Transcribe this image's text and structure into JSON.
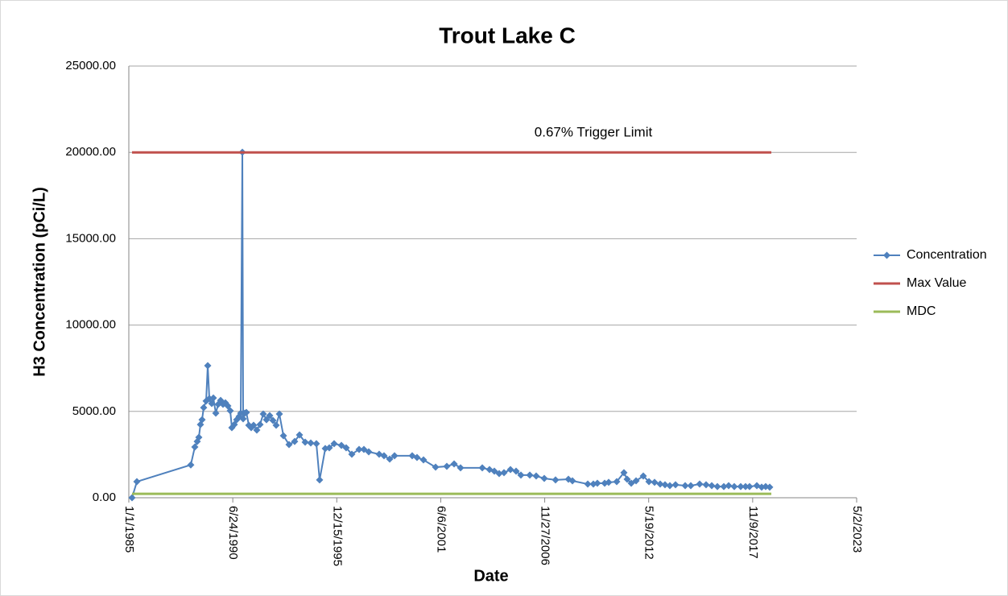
{
  "chart_data": {
    "type": "line",
    "title": "Trout Lake C",
    "x_label": "Date",
    "y_label": "H3 Concentration (pCi/L)",
    "annotation": "0.67% Trigger Limit",
    "xlim": [
      31048,
      45048
    ],
    "xticks": [
      {
        "value": 31048,
        "label": "1/1/1985"
      },
      {
        "value": 33048,
        "label": "6/24/1990"
      },
      {
        "value": 35048,
        "label": "12/15/1995"
      },
      {
        "value": 37048,
        "label": "6/6/2001"
      },
      {
        "value": 39048,
        "label": "11/27/2006"
      },
      {
        "value": 41048,
        "label": "5/19/2012"
      },
      {
        "value": 43048,
        "label": "11/9/2017"
      },
      {
        "value": 45048,
        "label": "5/2/2023"
      }
    ],
    "ylim": [
      0,
      25000
    ],
    "yticks": [
      {
        "value": 0,
        "label": "0.00"
      },
      {
        "value": 5000,
        "label": "5000.00"
      },
      {
        "value": 10000,
        "label": "10000.00"
      },
      {
        "value": 15000,
        "label": "15000.00"
      },
      {
        "value": 20000,
        "label": "20000.00"
      },
      {
        "value": 25000,
        "label": "25000.00"
      }
    ],
    "grid": true,
    "legend": "right",
    "series": [
      {
        "name": "Concentration",
        "color": "#4f81bd",
        "markers": true,
        "x": [
          31110,
          31203,
          32240,
          32318,
          32364,
          32395,
          32426,
          32457,
          32488,
          32535,
          32566,
          32597,
          32643,
          32674,
          32721,
          32767,
          32814,
          32860,
          32906,
          32953,
          32999,
          33030,
          33077,
          33123,
          33170,
          33201,
          33232,
          33247,
          33278,
          33309,
          33356,
          33402,
          33448,
          33510,
          33572,
          33634,
          33696,
          33758,
          33820,
          33882,
          33944,
          34022,
          34130,
          34238,
          34331,
          34440,
          34548,
          34656,
          34718,
          34827,
          34904,
          34997,
          35137,
          35229,
          35338,
          35477,
          35570,
          35663,
          35864,
          35957,
          36066,
          36159,
          36499,
          36592,
          36716,
          36949,
          37165,
          37305,
          37429,
          37847,
          37986,
          38079,
          38172,
          38265,
          38389,
          38497,
          38590,
          38761,
          38884,
          39039,
          39256,
          39504,
          39581,
          39876,
          39984,
          40061,
          40201,
          40278,
          40433,
          40572,
          40634,
          40712,
          40805,
          40944,
          41053,
          41161,
          41269,
          41362,
          41455,
          41564,
          41750,
          41858,
          42028,
          42152,
          42261,
          42369,
          42493,
          42586,
          42694,
          42818,
          42911,
          42988,
          43128,
          43221,
          43298,
          43376
        ],
        "values": [
          0,
          930,
          1900,
          2940,
          3260,
          3500,
          4240,
          4520,
          5220,
          5600,
          7650,
          5740,
          5460,
          5780,
          4900,
          5410,
          5640,
          5410,
          5500,
          5320,
          5040,
          4060,
          4240,
          4520,
          4710,
          4900,
          20010,
          4570,
          4900,
          4940,
          4200,
          4060,
          4200,
          3920,
          4240,
          4850,
          4520,
          4760,
          4480,
          4200,
          4850,
          3590,
          3080,
          3260,
          3640,
          3220,
          3170,
          3130,
          1030,
          2850,
          2890,
          3130,
          3030,
          2890,
          2520,
          2800,
          2800,
          2660,
          2520,
          2430,
          2240,
          2430,
          2430,
          2330,
          2190,
          1770,
          1820,
          1960,
          1730,
          1730,
          1630,
          1540,
          1400,
          1450,
          1630,
          1540,
          1310,
          1310,
          1260,
          1120,
          1030,
          1070,
          980,
          790,
          790,
          840,
          840,
          890,
          930,
          1450,
          1070,
          840,
          980,
          1260,
          930,
          890,
          790,
          750,
          700,
          750,
          700,
          700,
          790,
          750,
          700,
          650,
          650,
          700,
          650,
          650,
          650,
          650,
          700,
          610,
          650,
          610
        ]
      },
      {
        "name": "Max Value",
        "color": "#c0504d",
        "markers": false,
        "x": [
          31110,
          43407
        ],
        "values": [
          20000,
          20000
        ]
      },
      {
        "name": "MDC",
        "color": "#9bbb59",
        "markers": false,
        "x": [
          31110,
          43407
        ],
        "values": [
          230,
          230
        ]
      }
    ]
  }
}
